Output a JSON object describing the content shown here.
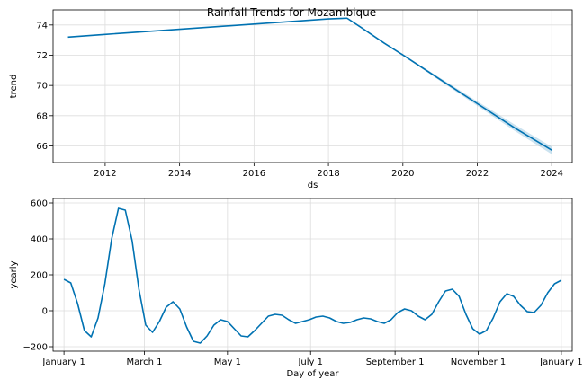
{
  "title": "Rainfall Trends for Mozambique",
  "colors": {
    "line": "#0072B2",
    "band": "#0072B2",
    "grid": "#dddddd",
    "axis": "#000000"
  },
  "chart_data": [
    {
      "type": "line",
      "name": "trend",
      "xlabel": "ds",
      "ylabel": "trend",
      "xlim": [
        2010.6,
        2024.55
      ],
      "ylim": [
        64.9,
        75.0
      ],
      "grid": true,
      "x_ticks": [
        2012,
        2014,
        2016,
        2018,
        2020,
        2022,
        2024
      ],
      "y_ticks": [
        66,
        68,
        70,
        72,
        74
      ],
      "x": [
        2011.0,
        2012.0,
        2014.0,
        2016.0,
        2018.0,
        2018.5,
        2018.9,
        2019.5,
        2020.0,
        2021.0,
        2022.0,
        2023.0,
        2024.0
      ],
      "y": [
        73.2,
        73.38,
        73.72,
        74.06,
        74.4,
        74.45,
        73.8,
        72.8,
        72.02,
        70.4,
        68.8,
        67.2,
        65.72
      ],
      "upper": [
        73.2,
        73.38,
        73.72,
        74.06,
        74.4,
        74.46,
        73.82,
        72.84,
        72.07,
        70.5,
        68.95,
        67.42,
        65.95
      ],
      "lower": [
        73.2,
        73.38,
        73.72,
        74.06,
        74.4,
        74.44,
        73.78,
        72.76,
        71.97,
        70.3,
        68.65,
        67.0,
        65.45
      ]
    },
    {
      "type": "line",
      "name": "yearly",
      "xlabel": "Day of year",
      "ylabel": "yearly",
      "xlim": [
        -8,
        373
      ],
      "ylim": [
        -225,
        625
      ],
      "grid": true,
      "x_ticks": [
        0,
        59,
        120,
        181,
        243,
        304,
        365
      ],
      "x_tick_labels": [
        "January 1",
        "March 1",
        "May 1",
        "July 1",
        "September 1",
        "November 1",
        "January 1"
      ],
      "y_ticks": [
        -200,
        0,
        200,
        400,
        600
      ],
      "x": [
        0,
        5,
        10,
        15,
        20,
        25,
        30,
        35,
        40,
        45,
        50,
        55,
        60,
        65,
        70,
        75,
        80,
        85,
        90,
        95,
        100,
        105,
        110,
        115,
        120,
        125,
        130,
        135,
        140,
        145,
        150,
        155,
        160,
        165,
        170,
        175,
        180,
        185,
        190,
        195,
        200,
        205,
        210,
        215,
        220,
        225,
        230,
        235,
        240,
        245,
        250,
        255,
        260,
        265,
        270,
        275,
        280,
        285,
        290,
        295,
        300,
        305,
        310,
        315,
        320,
        325,
        330,
        335,
        340,
        345,
        350,
        355,
        360,
        365
      ],
      "y": [
        175,
        155,
        40,
        -110,
        -145,
        -40,
        150,
        400,
        570,
        560,
        390,
        120,
        -80,
        -120,
        -60,
        20,
        50,
        10,
        -90,
        -170,
        -180,
        -140,
        -80,
        -50,
        -60,
        -100,
        -140,
        -145,
        -110,
        -70,
        -30,
        -20,
        -25,
        -50,
        -70,
        -60,
        -50,
        -35,
        -30,
        -40,
        -60,
        -70,
        -65,
        -50,
        -40,
        -45,
        -60,
        -70,
        -50,
        -10,
        10,
        0,
        -30,
        -50,
        -20,
        50,
        110,
        120,
        80,
        -20,
        -100,
        -130,
        -110,
        -40,
        50,
        95,
        80,
        30,
        -5,
        -10,
        30,
        100,
        150,
        170
      ]
    }
  ]
}
